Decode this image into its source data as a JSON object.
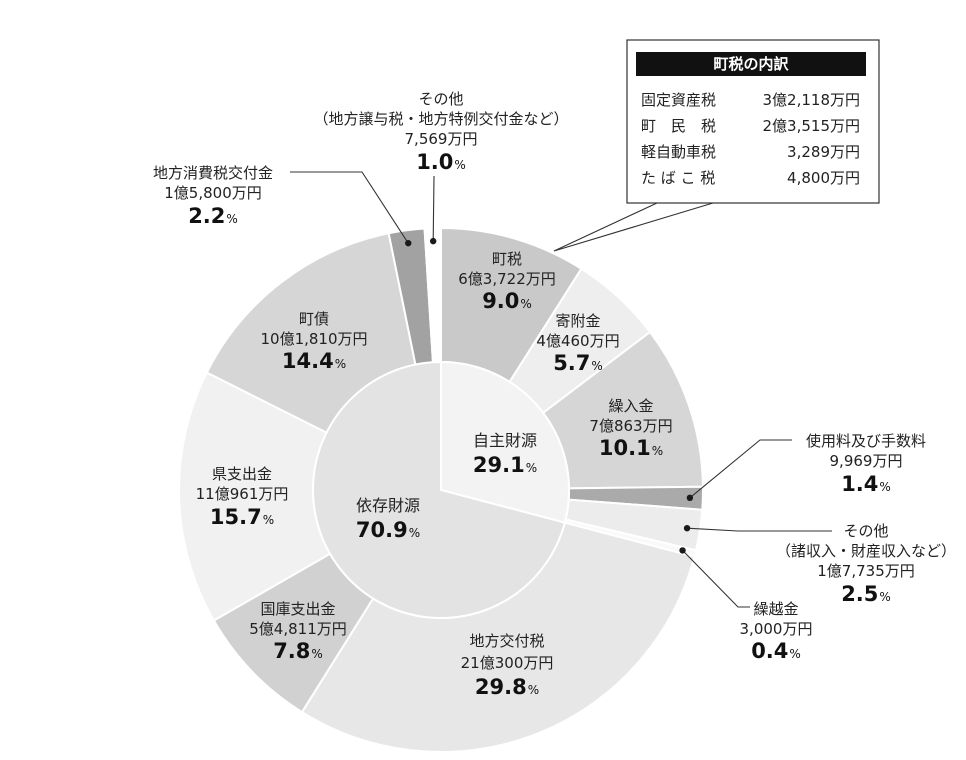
{
  "percent_unit": "%",
  "inset": {
    "title": "町税の内訳",
    "rows": [
      {
        "label": "固定資産税",
        "amount": "3億2,118万円"
      },
      {
        "label": "町　民　税",
        "amount": "2億3,515万円"
      },
      {
        "label": "軽自動車税",
        "amount": "3,289万円"
      },
      {
        "label": "た ば こ 税",
        "amount": "4,800万円"
      }
    ]
  },
  "chart_data": {
    "type": "pie",
    "inner": [
      {
        "label": "自主財源",
        "percent": "29.1",
        "color": "#F3F3F3"
      },
      {
        "label": "依存財源",
        "percent": "70.9",
        "color": "#E3E3E3"
      }
    ],
    "outer": [
      {
        "label": "町税",
        "amount": "6億3,722万円",
        "percent": "9.0",
        "color": "#C9C9C9"
      },
      {
        "label": "寄附金",
        "amount": "4億460万円",
        "percent": "5.7",
        "color": "#EEEEEE"
      },
      {
        "label": "繰入金",
        "amount": "7億863万円",
        "percent": "10.1",
        "color": "#D6D6D6"
      },
      {
        "label": "使用料及び手数料",
        "amount": "9,969万円",
        "percent": "1.4",
        "color": "#AAAAAA"
      },
      {
        "label": "その他",
        "note": "（諸収入・財産収入など）",
        "amount": "1億7,735万円",
        "percent": "2.5",
        "color": "#ECECEC"
      },
      {
        "label": "繰越金",
        "amount": "3,000万円",
        "percent": "0.4",
        "color": "#F9F9F9"
      },
      {
        "label": "地方交付税",
        "amount": "21億300万円",
        "percent": "29.8",
        "color": "#E7E7E7"
      },
      {
        "label": "国庫支出金",
        "amount": "5億4,811万円",
        "percent": "7.8",
        "color": "#D1D1D1"
      },
      {
        "label": "県支出金",
        "amount": "11億961万円",
        "percent": "15.7",
        "color": "#F1F1F1"
      },
      {
        "label": "町債",
        "amount": "10億1,810万円",
        "percent": "14.4",
        "color": "#D6D6D6"
      },
      {
        "label": "地方消費税交付金",
        "amount": "1億5,800万円",
        "percent": "2.2",
        "color": "#A2A2A2"
      },
      {
        "label": "その他",
        "note": "（地方譲与税・地方特例交付金など）",
        "amount": "7,569万円",
        "percent": "1.0",
        "color": "#FFFFFF"
      }
    ]
  }
}
